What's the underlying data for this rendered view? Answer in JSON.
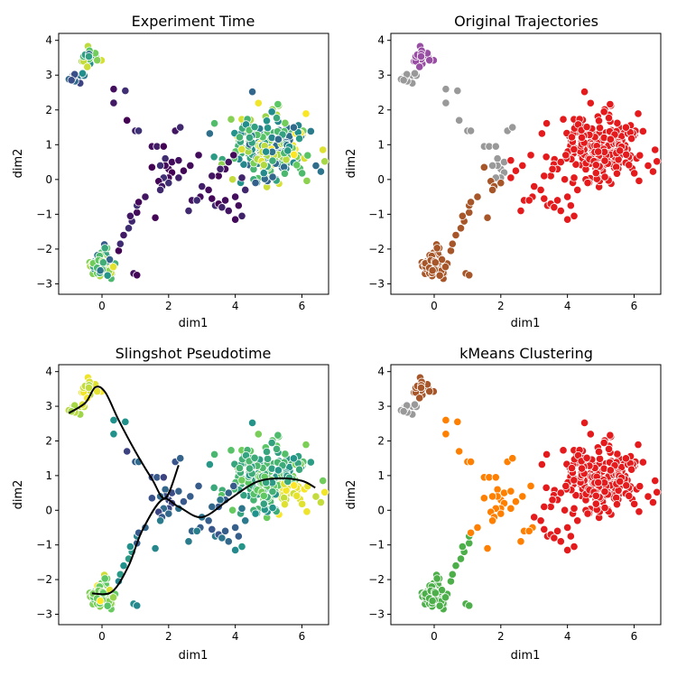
{
  "chart_data": [
    {
      "type": "scatter",
      "title": "Experiment Time",
      "xlabel": "dim1",
      "ylabel": "dim2",
      "xlim": [
        -1.3,
        6.8
      ],
      "ylim": [
        -3.3,
        4.2
      ],
      "xticks": [
        0,
        2,
        4,
        6
      ],
      "yticks": [
        -3,
        -2,
        -1,
        0,
        1,
        2,
        3,
        4
      ],
      "coloring": "continuous experiment time (viridis)",
      "colormap": [
        "#440154",
        "#3b528b",
        "#21918c",
        "#5ec962",
        "#fde725"
      ]
    },
    {
      "type": "scatter",
      "title": "Original Trajectories",
      "xlabel": "dim1",
      "ylabel": "dim2",
      "xlim": [
        -1.3,
        6.8
      ],
      "ylim": [
        -3.3,
        4.2
      ],
      "xticks": [
        0,
        2,
        4,
        6
      ],
      "yticks": [
        -3,
        -2,
        -1,
        0,
        1,
        2,
        3,
        4
      ],
      "coloring": "categorical trajectory",
      "colors": [
        "#984ea3",
        "#999999",
        "#a65628",
        "#e41a1c"
      ]
    },
    {
      "type": "scatter",
      "title": "Slingshot Pseudotime",
      "xlabel": "dim1",
      "ylabel": "dim2",
      "xlim": [
        -1.3,
        6.8
      ],
      "ylim": [
        -3.3,
        4.2
      ],
      "xticks": [
        0,
        2,
        4,
        6
      ],
      "yticks": [
        -3,
        -2,
        -1,
        0,
        1,
        2,
        3,
        4
      ],
      "coloring": "continuous pseudotime (viridis) with principal curves",
      "colormap": [
        "#440154",
        "#3b528b",
        "#21918c",
        "#5ec962",
        "#fde725"
      ],
      "curves": [
        {
          "x": [
            -1.0,
            -0.5,
            -0.2,
            0.1,
            0.5,
            1.0,
            1.5,
            1.9,
            2.3
          ],
          "y": [
            2.8,
            3.1,
            3.55,
            3.4,
            2.6,
            1.7,
            0.9,
            0.35,
            1.3
          ]
        },
        {
          "x": [
            -0.3,
            0.3,
            0.8,
            1.2,
            1.8,
            2.3,
            3.0,
            3.8,
            4.6,
            5.3,
            6.0,
            6.4
          ],
          "y": [
            -2.4,
            -2.35,
            -1.6,
            -0.6,
            0.3,
            0.1,
            -0.2,
            0.3,
            0.8,
            0.92,
            0.85,
            0.65
          ]
        }
      ]
    },
    {
      "type": "scatter",
      "title": "kMeans Clustering",
      "xlabel": "dim1",
      "ylabel": "dim2",
      "xlim": [
        -1.3,
        6.8
      ],
      "ylim": [
        -3.3,
        4.2
      ],
      "xticks": [
        0,
        2,
        4,
        6
      ],
      "yticks": [
        -3,
        -2,
        -1,
        0,
        1,
        2,
        3,
        4
      ],
      "coloring": "categorical cluster",
      "colors": [
        "#a65628",
        "#999999",
        "#ff7f00",
        "#4daf4a",
        "#e41a1c"
      ]
    }
  ],
  "point_data": {
    "groups": [
      {
        "id": "A",
        "center": [
          -0.35,
          3.55
        ],
        "spread": [
          0.12,
          0.17
        ],
        "count": 20
      },
      {
        "id": "B",
        "center": [
          -0.75,
          2.95
        ],
        "spread": [
          0.15,
          0.1
        ],
        "count": 12
      },
      {
        "id": "C",
        "center": [
          0.0,
          -2.45
        ],
        "spread": [
          0.17,
          0.2
        ],
        "count": 80
      },
      {
        "id": "D",
        "center": [
          5.1,
          0.95
        ],
        "spread": [
          0.6,
          0.45
        ],
        "count": 240
      }
    ],
    "branch1": [
      [
        0.35,
        2.6
      ],
      [
        0.7,
        2.55
      ],
      [
        0.35,
        2.2
      ],
      [
        0.75,
        1.7
      ],
      [
        1.0,
        1.4
      ],
      [
        1.1,
        1.4
      ],
      [
        1.5,
        0.95
      ],
      [
        1.65,
        0.95
      ],
      [
        1.85,
        0.95
      ],
      [
        1.9,
        0.6
      ],
      [
        2.0,
        0.3
      ],
      [
        2.1,
        0.2
      ],
      [
        2.0,
        0.05
      ],
      [
        1.85,
        0.05
      ],
      [
        1.7,
        -0.05
      ],
      [
        1.8,
        -0.2
      ],
      [
        2.0,
        -0.1
      ],
      [
        2.2,
        1.4
      ],
      [
        2.35,
        1.5
      ],
      [
        2.1,
        0.5
      ],
      [
        1.9,
        0.4
      ],
      [
        1.75,
        0.4
      ]
    ],
    "branch2": [
      [
        0.95,
        -2.7
      ],
      [
        1.05,
        -2.75
      ],
      [
        0.5,
        -2.05
      ],
      [
        0.55,
        -1.85
      ],
      [
        0.65,
        -1.6
      ],
      [
        0.8,
        -1.4
      ],
      [
        0.9,
        -1.2
      ],
      [
        0.85,
        -1.05
      ],
      [
        1.05,
        -0.95
      ],
      [
        1.05,
        -0.75
      ],
      [
        1.1,
        -0.65
      ],
      [
        1.3,
        -0.5
      ],
      [
        1.6,
        -1.1
      ],
      [
        1.75,
        -0.3
      ],
      [
        1.5,
        0.35
      ],
      [
        2.3,
        0.05
      ],
      [
        2.45,
        0.25
      ],
      [
        2.3,
        0.55
      ],
      [
        2.6,
        -0.9
      ],
      [
        2.7,
        -0.6
      ],
      [
        2.95,
        -0.5
      ],
      [
        2.85,
        -0.6
      ],
      [
        3.0,
        -0.2
      ],
      [
        3.2,
        -0.3
      ],
      [
        3.3,
        -0.55
      ],
      [
        3.4,
        -0.75
      ],
      [
        3.5,
        -0.7
      ],
      [
        3.6,
        -0.8
      ],
      [
        3.7,
        -0.6
      ],
      [
        3.8,
        -0.9
      ],
      [
        4.0,
        -0.5
      ],
      [
        4.1,
        -0.75
      ],
      [
        4.0,
        -1.15
      ],
      [
        4.2,
        -1.05
      ],
      [
        3.7,
        0.3
      ],
      [
        3.8,
        0.5
      ],
      [
        3.95,
        0.7
      ],
      [
        3.5,
        0.1
      ],
      [
        3.3,
        0.1
      ],
      [
        3.55,
        0.3
      ],
      [
        4.3,
        -0.3
      ],
      [
        4.2,
        0.05
      ],
      [
        2.9,
        0.7
      ],
      [
        2.65,
        0.4
      ]
    ]
  }
}
